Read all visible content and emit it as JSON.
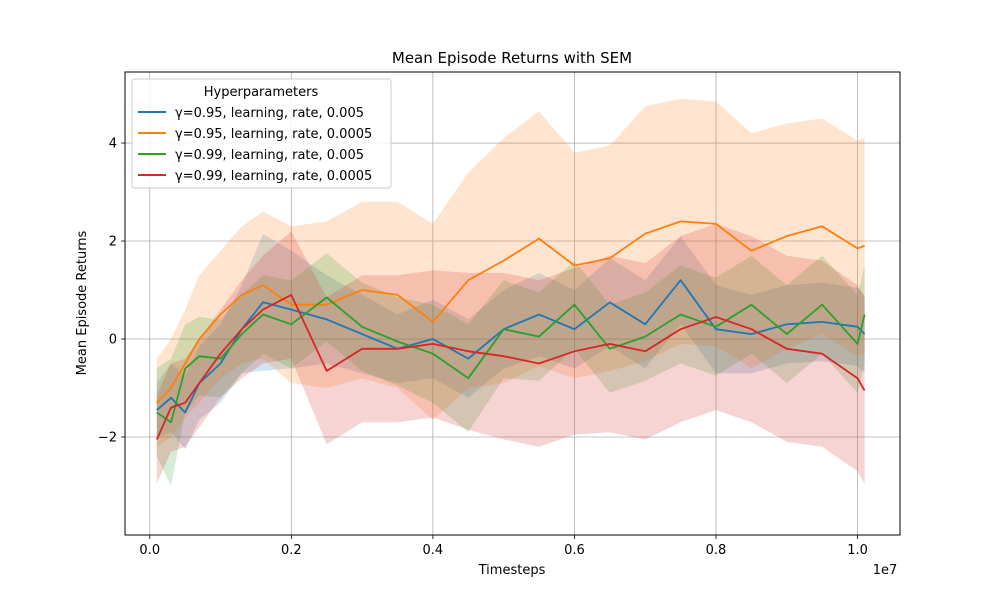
{
  "chart_data": {
    "type": "line",
    "title": "Mean Episode Returns with SEM",
    "xlabel": "Timesteps",
    "ylabel": "Mean Episode Returns",
    "x_offset_label": "1e7",
    "xlim": [
      -0.035,
      1.06
    ],
    "ylim": [
      -4.0,
      5.45
    ],
    "x_ticks": [
      0.0,
      0.2,
      0.4,
      0.6,
      0.8,
      1.0
    ],
    "x_tick_labels": [
      "0.0",
      "0.2",
      "0.4",
      "0.6",
      "0.8",
      "1.0"
    ],
    "y_ticks": [
      -2,
      0,
      2,
      4
    ],
    "y_tick_labels": [
      "−2",
      "0",
      "2",
      "4"
    ],
    "grid": true,
    "legend": {
      "title": "Hyperparameters",
      "location": "top-left"
    },
    "x": [
      0.01,
      0.03,
      0.05,
      0.07,
      0.1,
      0.13,
      0.16,
      0.2,
      0.25,
      0.3,
      0.35,
      0.4,
      0.45,
      0.5,
      0.55,
      0.6,
      0.65,
      0.7,
      0.75,
      0.8,
      0.85,
      0.9,
      0.95,
      1.0,
      1.01
    ],
    "series": [
      {
        "name": "γ=0.95, learning, rate, 0.005",
        "color": "#1f77b4",
        "values": [
          -1.45,
          -1.2,
          -1.5,
          -0.9,
          -0.5,
          0.2,
          0.75,
          0.6,
          0.4,
          0.1,
          -0.2,
          0.0,
          -0.4,
          0.2,
          0.5,
          0.2,
          0.75,
          0.3,
          1.2,
          0.2,
          0.1,
          0.3,
          0.35,
          0.25,
          0.1
        ],
        "sem": [
          0.55,
          0.7,
          0.75,
          0.75,
          0.8,
          0.9,
          1.4,
          1.2,
          0.9,
          0.8,
          0.7,
          0.8,
          0.8,
          0.8,
          0.85,
          0.8,
          0.9,
          0.9,
          0.9,
          0.9,
          0.8,
          0.8,
          0.8,
          0.8,
          0.8
        ]
      },
      {
        "name": "γ=0.95, learning, rate, 0.0005",
        "color": "#ff7f0e",
        "values": [
          -1.3,
          -1.0,
          -0.5,
          0.0,
          0.5,
          0.9,
          1.1,
          0.7,
          0.7,
          1.0,
          0.9,
          0.35,
          1.2,
          1.6,
          2.05,
          1.5,
          1.65,
          2.15,
          2.4,
          2.35,
          1.8,
          2.1,
          2.3,
          1.85,
          1.9
        ],
        "sem": [
          0.9,
          1.0,
          1.1,
          1.3,
          1.3,
          1.4,
          1.5,
          1.6,
          1.7,
          1.8,
          1.9,
          2.0,
          2.2,
          2.5,
          2.6,
          2.3,
          2.3,
          2.6,
          2.5,
          2.5,
          2.4,
          2.3,
          2.2,
          2.2,
          2.2
        ]
      },
      {
        "name": "γ=0.99, learning, rate, 0.005",
        "color": "#2ca02c",
        "values": [
          -1.5,
          -1.7,
          -0.6,
          -0.35,
          -0.4,
          0.1,
          0.5,
          0.3,
          0.85,
          0.25,
          -0.05,
          -0.3,
          -0.8,
          0.2,
          0.05,
          0.7,
          -0.2,
          0.05,
          0.5,
          0.25,
          0.7,
          0.1,
          0.7,
          -0.1,
          0.5
        ],
        "sem": [
          0.9,
          1.3,
          0.9,
          0.8,
          0.8,
          0.8,
          0.8,
          0.9,
          0.9,
          0.9,
          0.9,
          1.0,
          1.1,
          1.0,
          0.9,
          0.9,
          0.9,
          0.9,
          1.0,
          1.0,
          1.0,
          1.0,
          1.0,
          1.0,
          1.0
        ]
      },
      {
        "name": "γ=0.99, learning, rate, 0.0005",
        "color": "#d62728",
        "values": [
          -2.05,
          -1.4,
          -1.3,
          -0.9,
          -0.3,
          0.2,
          0.6,
          0.9,
          -0.65,
          -0.2,
          -0.2,
          -0.1,
          -0.25,
          -0.35,
          -0.5,
          -0.25,
          -0.1,
          -0.25,
          0.2,
          0.45,
          0.2,
          -0.2,
          -0.3,
          -0.8,
          -1.05
        ],
        "sem": [
          0.9,
          0.9,
          0.9,
          0.9,
          0.9,
          1.0,
          1.1,
          1.3,
          1.5,
          1.5,
          1.5,
          1.5,
          1.6,
          1.7,
          1.7,
          1.7,
          1.8,
          1.8,
          1.9,
          1.9,
          1.9,
          1.9,
          1.9,
          1.9,
          1.9
        ]
      }
    ]
  }
}
